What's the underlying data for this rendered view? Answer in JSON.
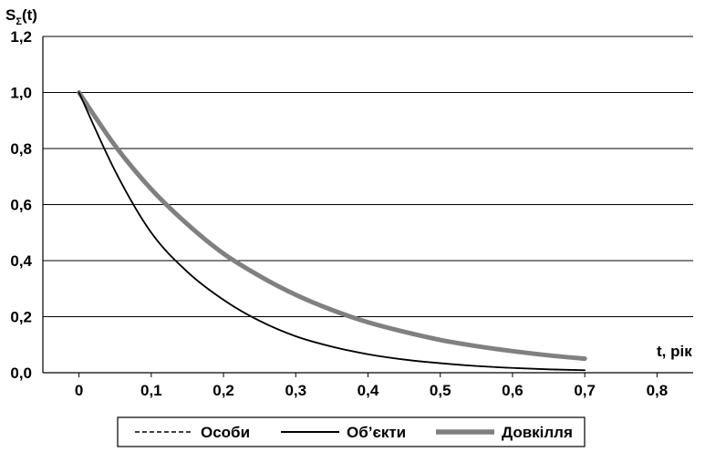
{
  "chart_data": {
    "type": "line",
    "ylabel_main": "S",
    "ylabel_sub": "Σ",
    "ylabel_tail": "(t)",
    "xlabel": "t, рік",
    "xlim": [
      -0.05,
      0.85
    ],
    "ylim": [
      0,
      1.2
    ],
    "grid": "horizontal",
    "legend_position": "bottom",
    "x_ticks": [
      0,
      0.1,
      0.2,
      0.3,
      0.4,
      0.5,
      0.6,
      0.7,
      0.8
    ],
    "x_tick_labels": [
      "0",
      "0,1",
      "0,2",
      "0,3",
      "0,4",
      "0,5",
      "0,6",
      "0,7",
      "0,8"
    ],
    "y_ticks": [
      0,
      0.2,
      0.4,
      0.6,
      0.8,
      1.0,
      1.2
    ],
    "y_tick_labels": [
      "0,0",
      "0,2",
      "0,4",
      "0,6",
      "0,8",
      "1,0",
      "1,2"
    ],
    "x": [
      0,
      0.05,
      0.1,
      0.15,
      0.2,
      0.25,
      0.3,
      0.35,
      0.4,
      0.45,
      0.5,
      0.55,
      0.6,
      0.65,
      0.7
    ],
    "series": [
      {
        "name": "Особи",
        "style": "dashed",
        "color": "#000000",
        "values": [
          1.0,
          0.72,
          0.5,
          0.36,
          0.26,
          0.185,
          0.13,
          0.093,
          0.066,
          0.047,
          0.034,
          0.024,
          0.017,
          0.012,
          0.009
        ]
      },
      {
        "name": "Об’єкти",
        "style": "solid",
        "color": "#000000",
        "values": [
          1.0,
          0.72,
          0.5,
          0.36,
          0.26,
          0.185,
          0.13,
          0.093,
          0.066,
          0.047,
          0.034,
          0.024,
          0.017,
          0.012,
          0.009
        ]
      },
      {
        "name": "Довкілля",
        "style": "thick",
        "color": "#808080",
        "values": [
          1.0,
          0.81,
          0.655,
          0.53,
          0.425,
          0.345,
          0.278,
          0.224,
          0.18,
          0.146,
          0.117,
          0.095,
          0.077,
          0.062,
          0.05
        ]
      }
    ]
  }
}
